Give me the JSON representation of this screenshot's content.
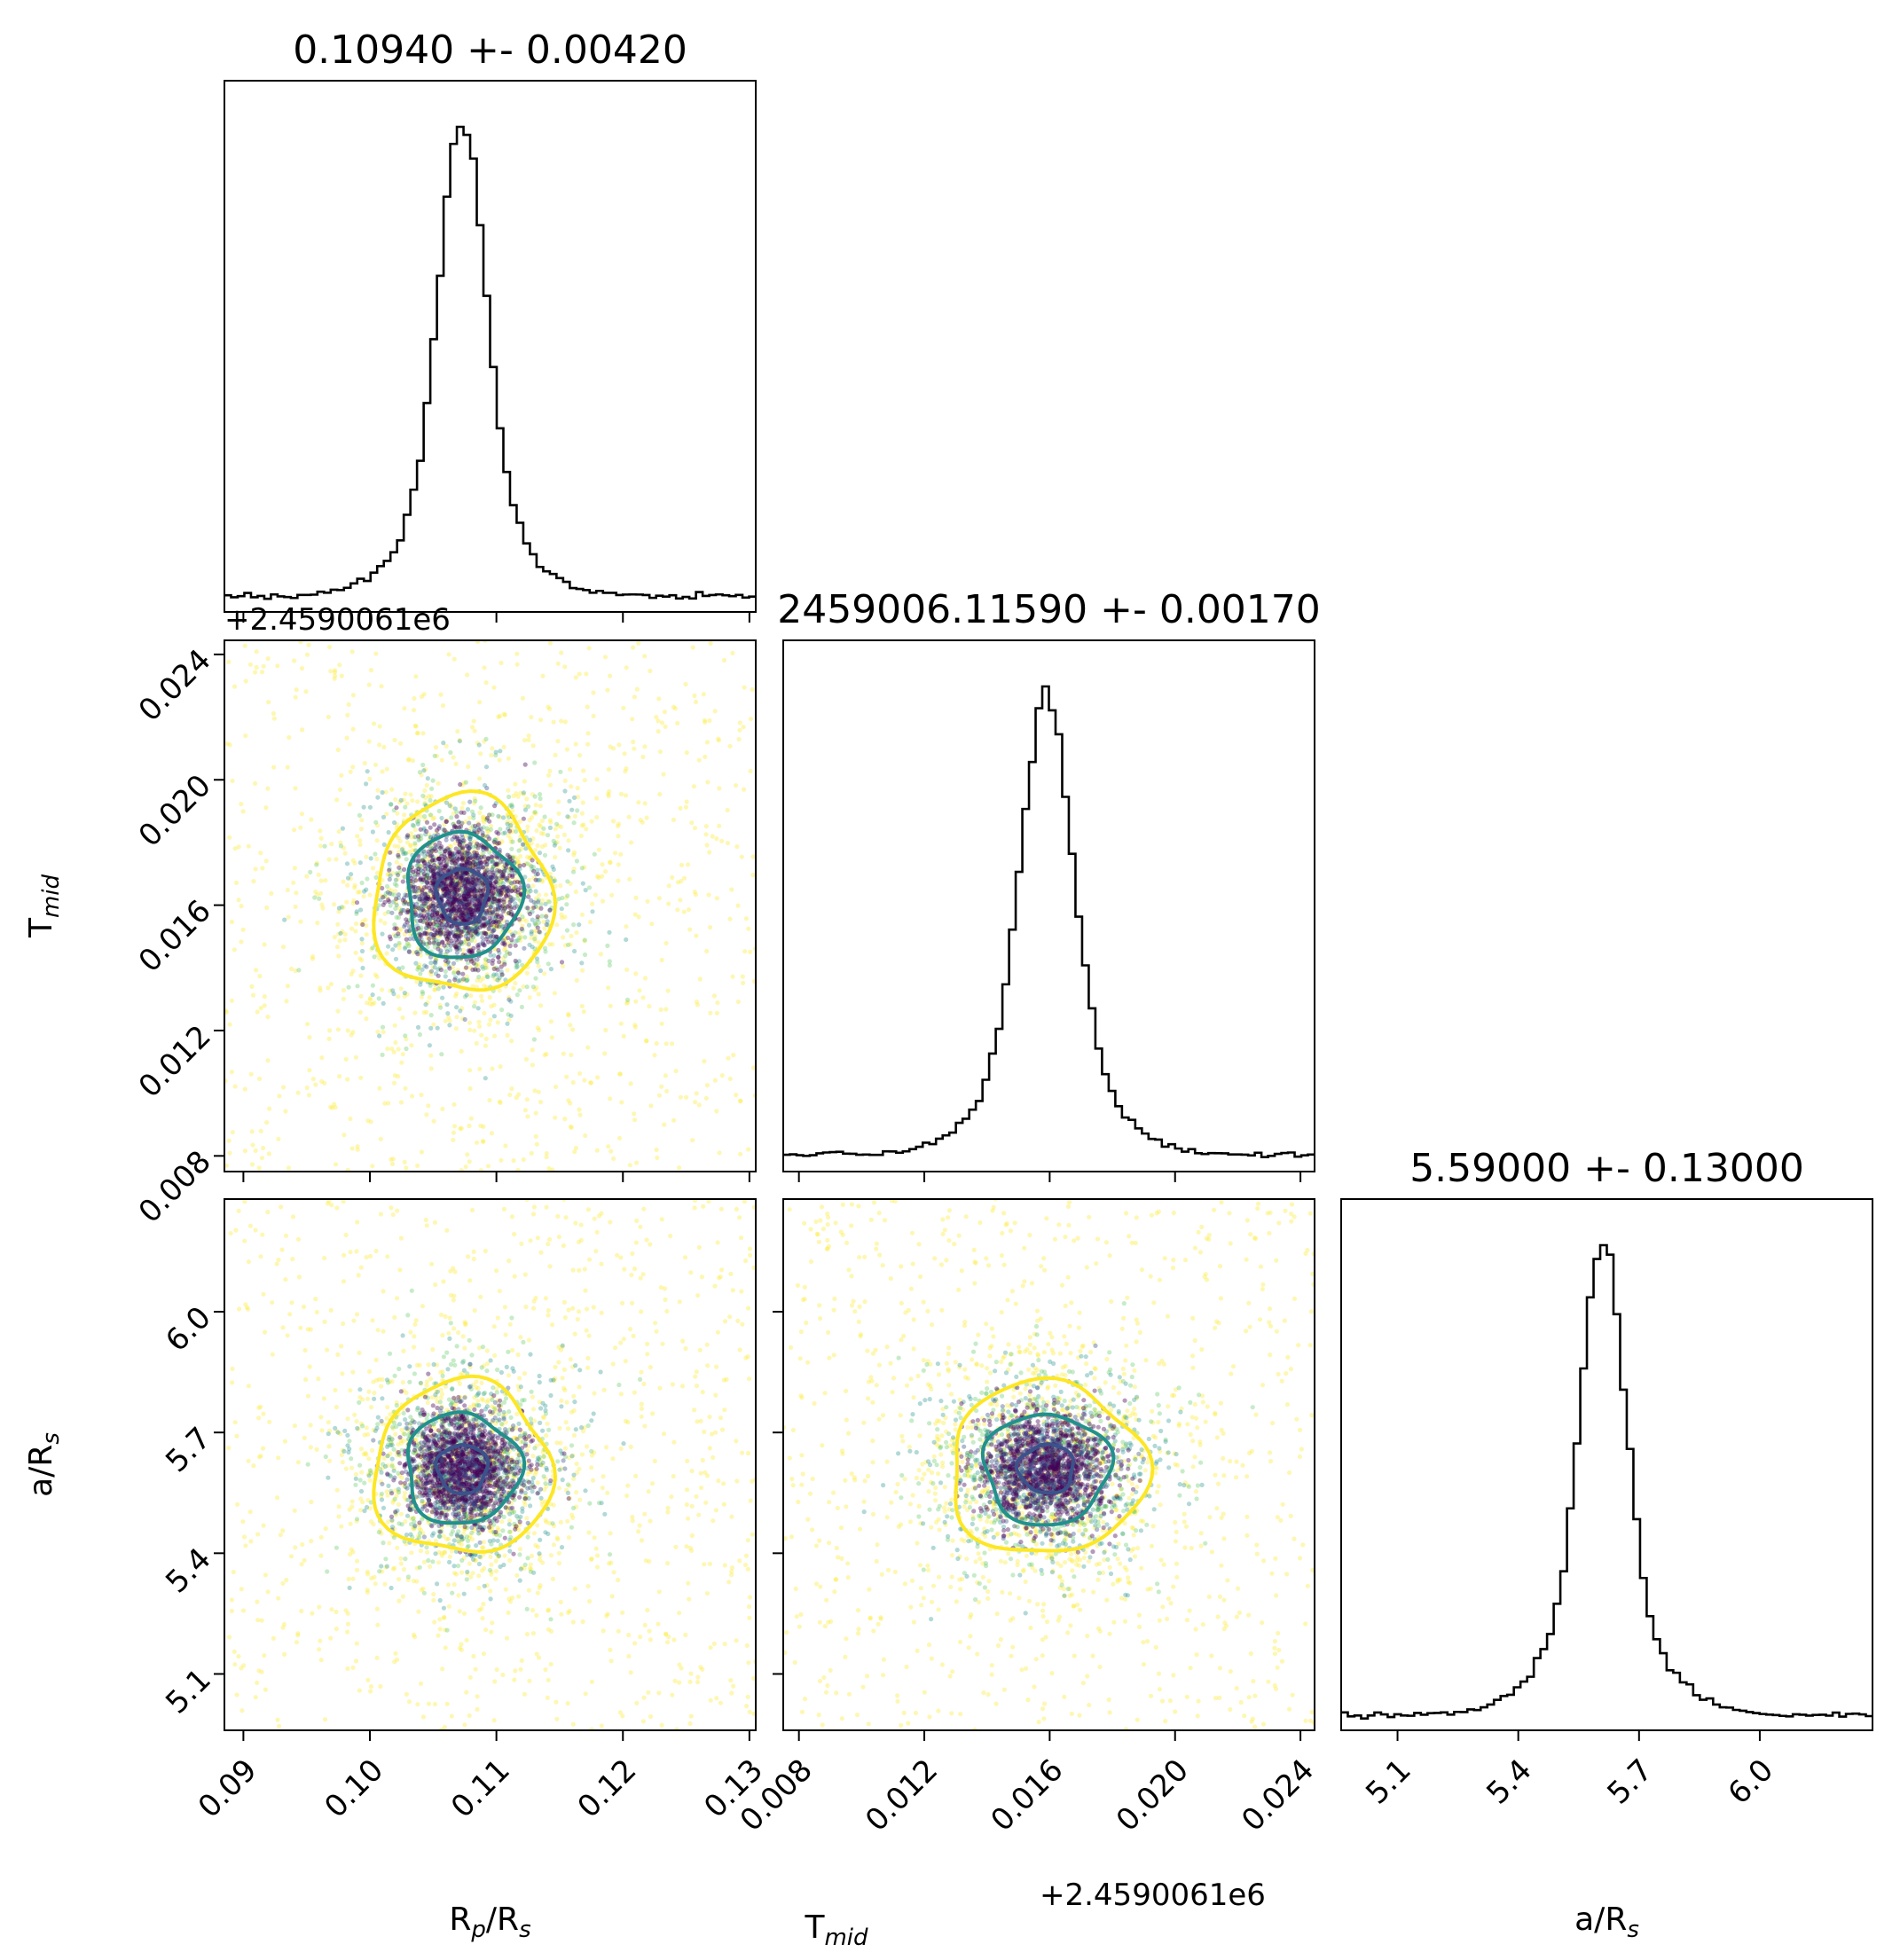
{
  "chart_data": {
    "type": "corner",
    "parameters": [
      {
        "key": "rp",
        "label": "R",
        "sub": "p",
        "label2": "/R",
        "sub2": "s",
        "range": [
          0.0885,
          0.1305
        ],
        "ticks": [
          "0.09",
          "0.10",
          "0.11",
          "0.12",
          "0.13"
        ],
        "tick_values": [
          0.09,
          0.1,
          0.11,
          0.12,
          0.13
        ],
        "title": "0.10940 +- 0.00420",
        "offset": ""
      },
      {
        "key": "tmid",
        "label": "T",
        "sub": "mid",
        "label2": "",
        "sub2": "",
        "range": [
          0.0075,
          0.02445
        ],
        "ticks": [
          "0.008",
          "0.012",
          "0.016",
          "0.020",
          "0.024"
        ],
        "tick_values": [
          0.008,
          0.012,
          0.016,
          0.02,
          0.024
        ],
        "title": "2459006.11590 +- 0.00170",
        "offset": "+2.4590061e6"
      },
      {
        "key": "ars",
        "label": "a/R",
        "sub": "s",
        "label2": "",
        "sub2": "",
        "range": [
          4.96,
          6.28
        ],
        "ticks": [
          "5.1",
          "5.4",
          "5.7",
          "6.0"
        ],
        "tick_values": [
          5.1,
          5.4,
          5.7,
          6.0
        ],
        "title": "5.59000 +- 0.13000",
        "offset": ""
      }
    ],
    "histograms": {
      "rp": {
        "peak": 0.1073,
        "core_sigma": 0.0018,
        "tail_fraction": 0.55,
        "tail_sigma": 0.009
      },
      "tmid": {
        "peak": 0.0159,
        "core_sigma": 0.0008,
        "tail_fraction": 0.55,
        "tail_sigma": 0.004
      },
      "ars": {
        "peak": 5.61,
        "core_sigma": 0.055,
        "tail_fraction": 0.55,
        "tail_sigma": 0.3
      }
    },
    "joint_centers": {
      "tmid_vs_rp": [
        0.1073,
        0.0163
      ],
      "ars_vs_rp": [
        0.1073,
        5.61
      ],
      "ars_vs_tmid": [
        0.0159,
        5.61
      ]
    },
    "contour_colors": [
      "#fde725",
      "#21918c",
      "#3b528b"
    ],
    "point_colors": [
      "#440154",
      "#3b528b",
      "#21918c",
      "#5ec962",
      "#fde725"
    ],
    "hist_color": "#000000"
  }
}
